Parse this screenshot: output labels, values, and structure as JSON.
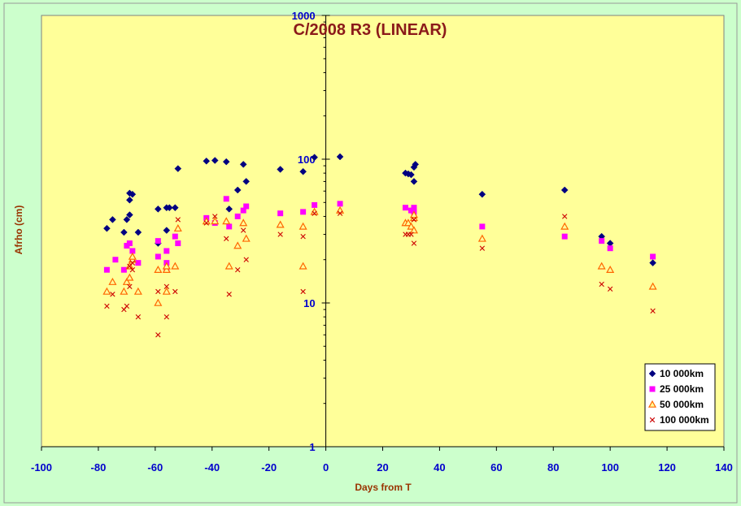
{
  "chart_data": {
    "type": "scatter",
    "title": "C/2008 R3 (LINEAR)",
    "xlabel": "Days from T",
    "ylabel": "Afrho (cm)",
    "xlim": [
      -100,
      140
    ],
    "ylim": [
      1,
      1000
    ],
    "y_scale": "log",
    "x_ticks": [
      -100,
      -80,
      -60,
      -40,
      -20,
      0,
      20,
      40,
      60,
      80,
      100,
      120,
      140
    ],
    "y_ticks": [
      1,
      10,
      100,
      1000
    ],
    "legend_position": "bottom-right",
    "colors": {
      "page_background": "#ccffcc",
      "plot_background": "#ffff99",
      "axis_text": "#0000cc",
      "axis_title": "#993300",
      "title": "#8b1a1a"
    },
    "series": [
      {
        "name": "10 000km",
        "marker": "diamond",
        "color": "#000080",
        "points": [
          [
            -77,
            33
          ],
          [
            -75,
            38
          ],
          [
            -71,
            31
          ],
          [
            -70,
            38
          ],
          [
            -69,
            41
          ],
          [
            -69,
            52
          ],
          [
            -69,
            58
          ],
          [
            -68,
            57
          ],
          [
            -66,
            31
          ],
          [
            -59,
            26
          ],
          [
            -59,
            45
          ],
          [
            -56,
            32
          ],
          [
            -56,
            46
          ],
          [
            -55,
            46
          ],
          [
            -53,
            46
          ],
          [
            -52,
            86
          ],
          [
            -42,
            97
          ],
          [
            -39,
            98
          ],
          [
            -35,
            96
          ],
          [
            -34,
            45
          ],
          [
            -31,
            61
          ],
          [
            -29,
            92
          ],
          [
            -28,
            70
          ],
          [
            -16,
            85
          ],
          [
            -8,
            82
          ],
          [
            -4,
            103
          ],
          [
            5,
            104
          ],
          [
            28,
            80
          ],
          [
            29,
            79
          ],
          [
            30,
            78
          ],
          [
            31,
            70
          ],
          [
            31,
            88
          ],
          [
            31.5,
            92
          ],
          [
            55,
            57
          ],
          [
            84,
            61
          ],
          [
            97,
            29
          ],
          [
            100,
            26
          ],
          [
            115,
            19
          ]
        ]
      },
      {
        "name": "25 000km",
        "marker": "square",
        "color": "#ff00ff",
        "points": [
          [
            -77,
            17
          ],
          [
            -74,
            20
          ],
          [
            -71,
            17
          ],
          [
            -70,
            25
          ],
          [
            -69,
            26
          ],
          [
            -68,
            23
          ],
          [
            -66,
            19
          ],
          [
            -59,
            27
          ],
          [
            -59,
            21
          ],
          [
            -56,
            23
          ],
          [
            -56,
            17
          ],
          [
            -56,
            19
          ],
          [
            -53,
            29
          ],
          [
            -52,
            26
          ],
          [
            -42,
            39
          ],
          [
            -39,
            36
          ],
          [
            -35,
            53
          ],
          [
            -34,
            34
          ],
          [
            -31,
            40
          ],
          [
            -29,
            44
          ],
          [
            -28,
            47
          ],
          [
            -16,
            42
          ],
          [
            -8,
            43
          ],
          [
            -4,
            48
          ],
          [
            5,
            49
          ],
          [
            28,
            46
          ],
          [
            30,
            44
          ],
          [
            31,
            46
          ],
          [
            31,
            43
          ],
          [
            55,
            34
          ],
          [
            84,
            29
          ],
          [
            97,
            27
          ],
          [
            100,
            24
          ],
          [
            115,
            21
          ]
        ]
      },
      {
        "name": "50 000km",
        "marker": "triangle",
        "color": "#ff6600",
        "points": [
          [
            -77,
            12
          ],
          [
            -75,
            14
          ],
          [
            -71,
            12
          ],
          [
            -70,
            14
          ],
          [
            -69,
            15
          ],
          [
            -69,
            18
          ],
          [
            -68,
            20
          ],
          [
            -68,
            21
          ],
          [
            -66,
            12
          ],
          [
            -59,
            17
          ],
          [
            -59,
            10
          ],
          [
            -56,
            17
          ],
          [
            -56,
            12
          ],
          [
            -56,
            18
          ],
          [
            -53,
            18
          ],
          [
            -52,
            33
          ],
          [
            -42,
            37
          ],
          [
            -39,
            37
          ],
          [
            -35,
            37
          ],
          [
            -34,
            18
          ],
          [
            -31,
            25
          ],
          [
            -29,
            36
          ],
          [
            -28,
            28
          ],
          [
            -16,
            35
          ],
          [
            -8,
            34
          ],
          [
            -8,
            18
          ],
          [
            -4,
            43
          ],
          [
            5,
            44
          ],
          [
            28,
            36
          ],
          [
            29,
            36
          ],
          [
            30,
            34
          ],
          [
            31,
            32
          ],
          [
            31,
            39
          ],
          [
            31,
            41
          ],
          [
            55,
            28
          ],
          [
            84,
            34
          ],
          [
            97,
            18
          ],
          [
            100,
            17
          ],
          [
            115,
            13
          ]
        ]
      },
      {
        "name": "100 000km",
        "marker": "x",
        "color": "#cc0000",
        "points": [
          [
            -77,
            9.5
          ],
          [
            -75,
            11.5
          ],
          [
            -71,
            9
          ],
          [
            -70,
            9.5
          ],
          [
            -69,
            13
          ],
          [
            -69,
            18
          ],
          [
            -68,
            17
          ],
          [
            -68,
            19
          ],
          [
            -66,
            8
          ],
          [
            -59,
            6
          ],
          [
            -59,
            12
          ],
          [
            -56,
            8
          ],
          [
            -56,
            13
          ],
          [
            -53,
            12
          ],
          [
            -52,
            38
          ],
          [
            -42,
            36
          ],
          [
            -39,
            40
          ],
          [
            -35,
            28
          ],
          [
            -34,
            11.5
          ],
          [
            -31,
            17
          ],
          [
            -29,
            32
          ],
          [
            -28,
            20
          ],
          [
            -16,
            30
          ],
          [
            -8,
            29
          ],
          [
            -8,
            12
          ],
          [
            -4,
            42
          ],
          [
            5,
            42
          ],
          [
            28,
            30
          ],
          [
            29,
            30
          ],
          [
            30,
            30
          ],
          [
            31,
            26
          ],
          [
            31,
            38
          ],
          [
            55,
            24
          ],
          [
            84,
            40
          ],
          [
            97,
            13.5
          ],
          [
            100,
            12.5
          ],
          [
            115,
            8.8
          ]
        ]
      }
    ]
  }
}
